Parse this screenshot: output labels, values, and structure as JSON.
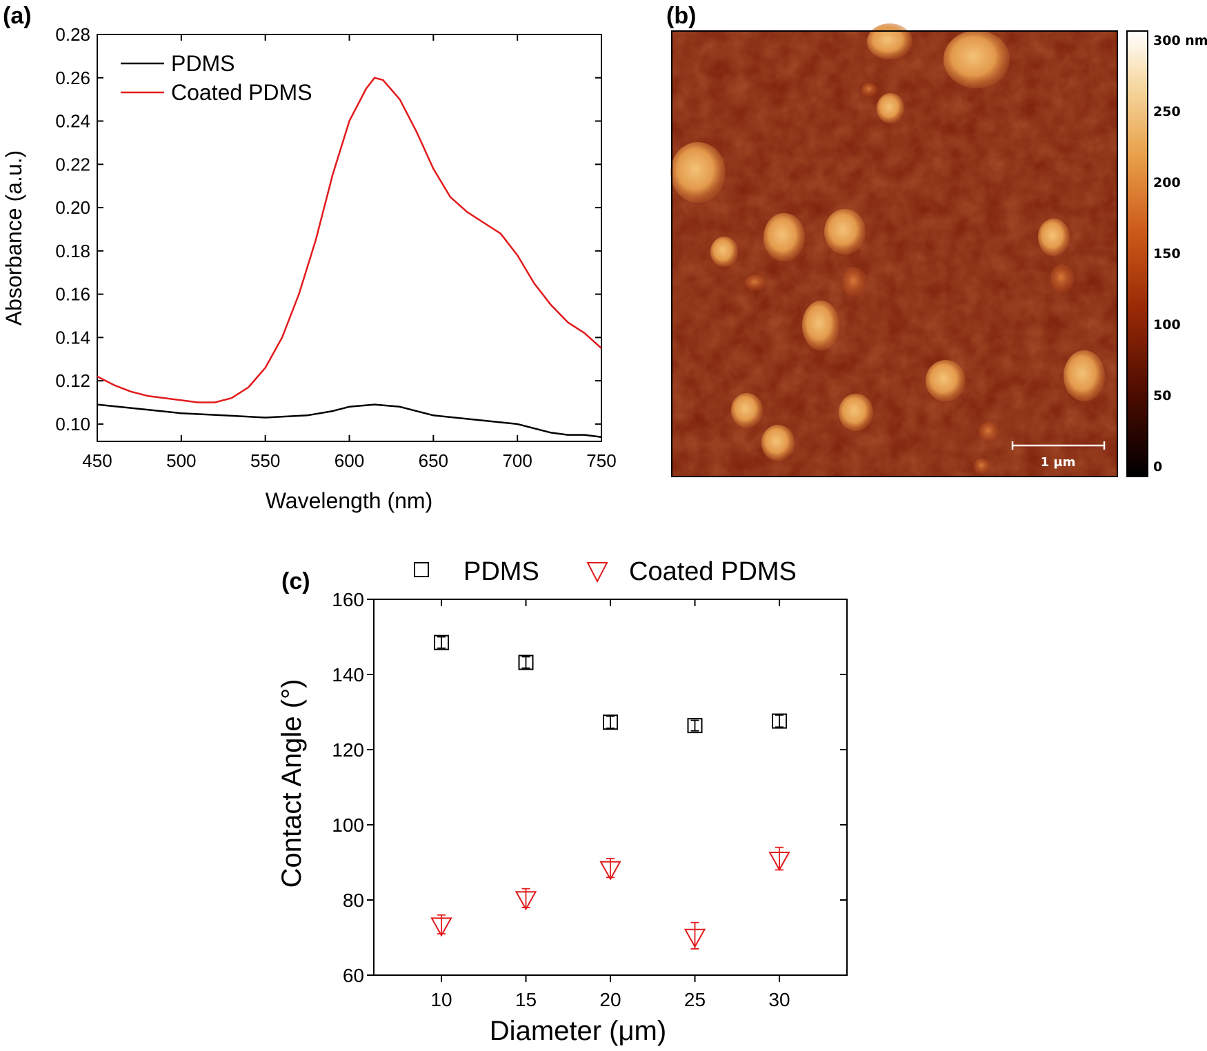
{
  "panels": {
    "a": "(a)",
    "b": "(b)",
    "c": "(c)"
  },
  "colors": {
    "pdms": "#000000",
    "coated": "#e31a1c"
  },
  "chart_data": [
    {
      "panel": "(a)",
      "type": "line",
      "xlabel": "Wavelength (nm)",
      "ylabel": "Absorbance (a.u.)",
      "xlim": [
        450,
        750
      ],
      "ylim": [
        0.092,
        0.28
      ],
      "xticks": [
        "450",
        "500",
        "550",
        "600",
        "650",
        "700",
        "750"
      ],
      "yticks": [
        "0.10",
        "0.12",
        "0.14",
        "0.16",
        "0.18",
        "0.20",
        "0.22",
        "0.24",
        "0.26",
        "0.28"
      ],
      "legend_position": "top-left",
      "series": [
        {
          "name": "PDMS",
          "color": "#000000",
          "x": [
            450,
            475,
            500,
            525,
            550,
            575,
            590,
            600,
            615,
            630,
            650,
            675,
            700,
            710,
            720,
            730,
            740,
            750
          ],
          "y": [
            0.109,
            0.107,
            0.105,
            0.104,
            0.103,
            0.104,
            0.106,
            0.108,
            0.109,
            0.108,
            0.104,
            0.102,
            0.1,
            0.098,
            0.096,
            0.095,
            0.095,
            0.094
          ]
        },
        {
          "name": "Coated PDMS",
          "color": "#e31a1c",
          "x": [
            450,
            460,
            470,
            480,
            490,
            500,
            510,
            520,
            530,
            540,
            550,
            560,
            570,
            580,
            590,
            600,
            610,
            615,
            620,
            630,
            640,
            650,
            660,
            670,
            680,
            690,
            700,
            710,
            720,
            730,
            740,
            750
          ],
          "y": [
            0.122,
            0.118,
            0.115,
            0.113,
            0.112,
            0.111,
            0.11,
            0.11,
            0.112,
            0.117,
            0.126,
            0.14,
            0.16,
            0.185,
            0.215,
            0.24,
            0.255,
            0.26,
            0.259,
            0.25,
            0.235,
            0.218,
            0.205,
            0.198,
            0.193,
            0.188,
            0.178,
            0.165,
            0.155,
            0.147,
            0.142,
            0.135
          ]
        }
      ]
    },
    {
      "panel": "(b)",
      "type": "heatmap",
      "colorbar_ticks": [
        "300 nm",
        "250",
        "200",
        "150",
        "100",
        "50",
        "0"
      ],
      "scale_bar": "1 μm"
    },
    {
      "panel": "(c)",
      "type": "scatter",
      "xlabel": "Diameter (μm)",
      "ylabel": "Contact Angle (°)",
      "xlim": [
        6,
        34
      ],
      "ylim": [
        60,
        160
      ],
      "xticks": [
        "10",
        "15",
        "20",
        "25",
        "30"
      ],
      "yticks": [
        "60",
        "80",
        "100",
        "120",
        "140",
        "160"
      ],
      "legend_position": "top",
      "series": [
        {
          "name": "PDMS",
          "marker": "square",
          "color": "#000000",
          "x": [
            10,
            15,
            20,
            25,
            30
          ],
          "y": [
            148.5,
            143.2,
            127.3,
            126.4,
            127.6
          ],
          "err": [
            1.5,
            1.5,
            1.6,
            1.4,
            1.6
          ]
        },
        {
          "name": "Coated PDMS",
          "marker": "triangle-down",
          "color": "#e31a1c",
          "x": [
            10,
            15,
            20,
            25,
            30
          ],
          "y": [
            73.5,
            80.5,
            88.5,
            70.5,
            91.0
          ],
          "err": [
            2.5,
            2.5,
            2.5,
            3.5,
            3.0
          ]
        }
      ]
    }
  ]
}
